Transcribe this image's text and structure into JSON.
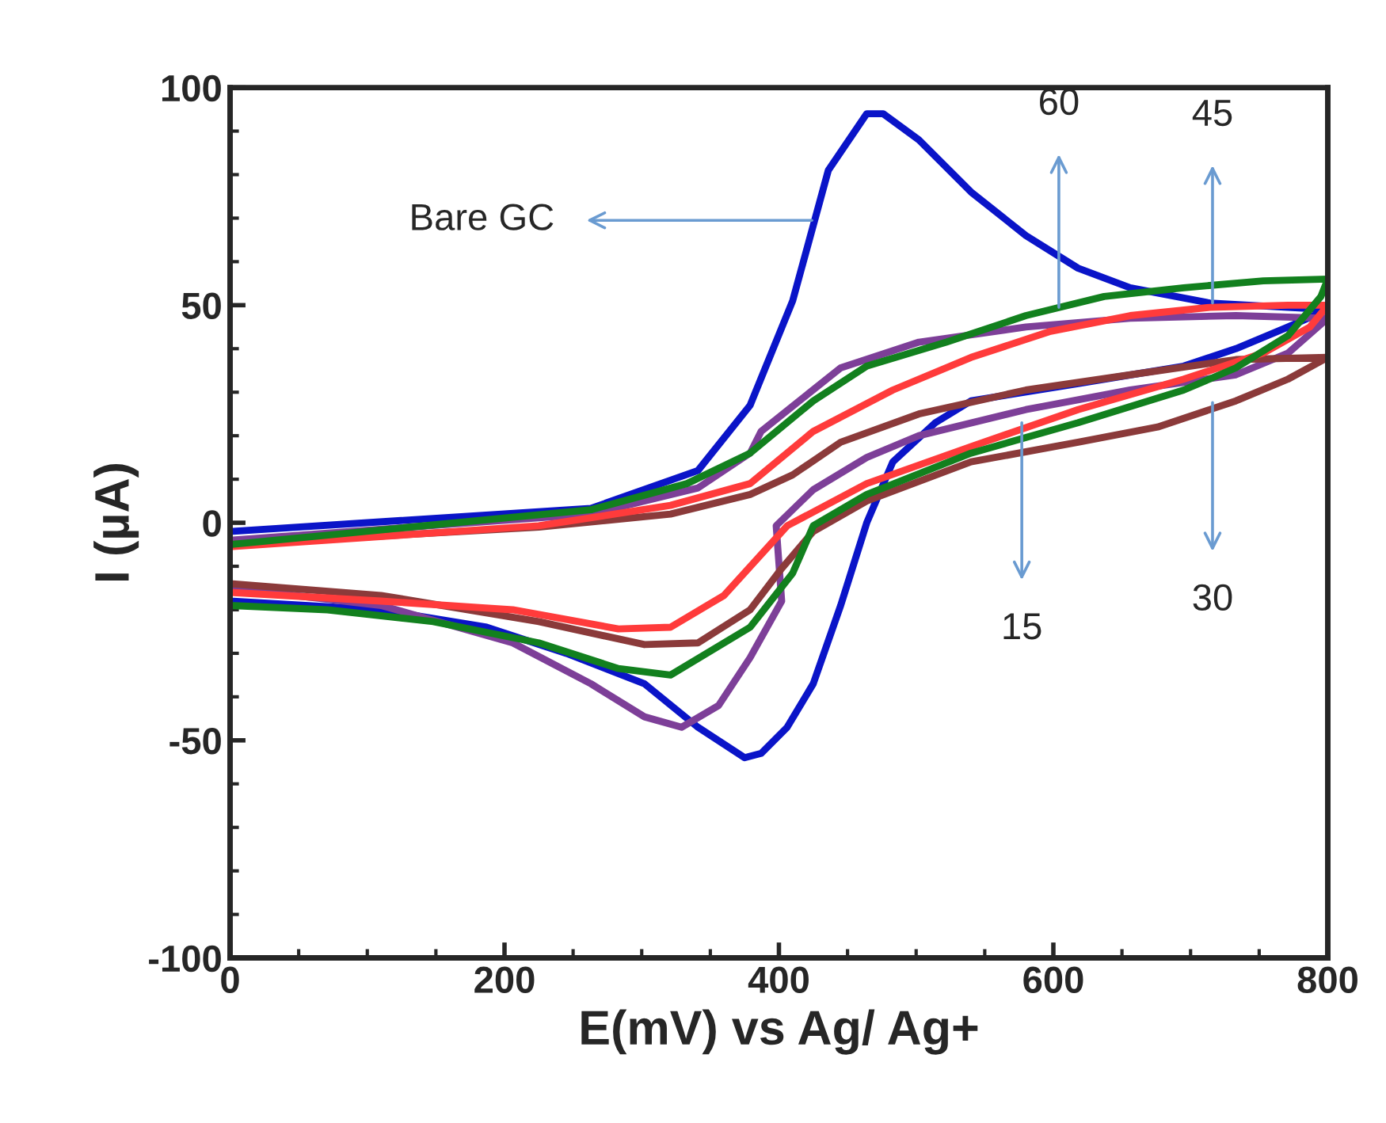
{
  "chart_data": {
    "type": "line",
    "xlabel": "E(mV) vs Ag/ Ag+",
    "ylabel": "I (µA)",
    "xlim": [
      0,
      800
    ],
    "xticks": [
      0,
      200,
      400,
      600,
      800
    ],
    "ylim": [
      -100,
      100
    ],
    "yticks": [
      100,
      50,
      0,
      -50,
      -100
    ],
    "grid": false,
    "marker": "none",
    "line_style": "solid",
    "series": [
      {
        "color": "#0a14c8",
        "x": [
          0,
          263,
          341,
          379,
          410,
          436,
          464,
          476,
          502,
          540,
          580,
          618,
          656,
          714,
          771,
          800,
          771,
          733,
          695,
          618,
          540,
          514,
          483,
          464,
          445,
          425,
          406,
          387,
          375,
          341,
          302,
          245,
          187,
          110,
          0
        ],
        "values": [
          -2,
          3.3,
          12,
          27,
          51,
          81,
          94,
          94,
          88,
          76,
          66,
          58.5,
          54,
          50.5,
          49.5,
          49,
          45,
          40,
          36,
          32,
          28,
          23,
          14,
          0,
          -19,
          -37,
          -47,
          -53,
          -54,
          -47,
          -37,
          -30,
          -24,
          -20,
          -18
        ]
      },
      {
        "color": "#7d3f98",
        "x": [
          0,
          263,
          341,
          379,
          387,
          445,
          502,
          580,
          656,
          733,
          800,
          771,
          733,
          656,
          580,
          502,
          464,
          425,
          398,
          402,
          379,
          356,
          329,
          302,
          263,
          206,
          110,
          0
        ],
        "values": [
          -4,
          2,
          8,
          16,
          21,
          35.6,
          41.5,
          45,
          47,
          47.6,
          47,
          39,
          34,
          30.5,
          26,
          20,
          15,
          7.6,
          -0.7,
          -18,
          -31,
          -42,
          -47,
          -44.6,
          -37,
          -27.6,
          -19,
          -15
        ]
      },
      {
        "color": "#8b3a3a",
        "x": [
          0,
          225,
          321,
          379,
          410,
          445,
          502,
          580,
          656,
          733,
          800,
          771,
          733,
          676,
          618,
          540,
          464,
          425,
          402,
          379,
          341,
          302,
          225,
          110,
          0
        ],
        "values": [
          -5,
          -1,
          2,
          6.5,
          11,
          18.5,
          25,
          30.5,
          34,
          37.5,
          38,
          33,
          28,
          22,
          18.5,
          14,
          5,
          -2,
          -10.5,
          -20,
          -27.6,
          -28,
          -22.7,
          -16.7,
          -14
        ]
      },
      {
        "color": "#ff3b3b",
        "x": [
          0,
          225,
          321,
          379,
          425,
          483,
          540,
          598,
          656,
          714,
          771,
          800,
          787,
          753,
          695,
          618,
          540,
          464,
          406,
          360,
          321,
          283,
          206,
          110,
          0
        ],
        "values": [
          -5.5,
          -0.7,
          4,
          9,
          21,
          30.5,
          38,
          44,
          47.6,
          49.5,
          50,
          50,
          45,
          39,
          33,
          26,
          17.5,
          9,
          -0.7,
          -16.7,
          -24,
          -24.4,
          -20,
          -18,
          -16
        ]
      },
      {
        "color": "#12801e",
        "x": [
          0,
          263,
          333,
          379,
          425,
          464,
          522,
          580,
          637,
          695,
          753,
          800,
          795,
          771,
          733,
          695,
          618,
          540,
          464,
          425,
          410,
          379,
          321,
          283,
          225,
          148,
          71,
          0
        ],
        "values": [
          -5,
          3,
          9,
          16,
          28,
          36,
          41.5,
          47.6,
          52,
          54,
          55.6,
          56,
          52,
          43,
          35.6,
          30.5,
          23,
          16,
          6.5,
          -0.7,
          -11.6,
          -24,
          -35,
          -33.5,
          -27.6,
          -22.7,
          -20,
          -19
        ]
      }
    ],
    "annotations": [
      {
        "text": "Bare GC",
        "x": 424,
        "y": 69.5
      },
      {
        "text": "60",
        "x": 604,
        "y": 49.5
      },
      {
        "text": "45",
        "x": 716,
        "y": 50.5
      },
      {
        "text": "15",
        "x": 577,
        "y": 23
      },
      {
        "text": "30",
        "x": 716,
        "y": 27.6
      }
    ]
  }
}
